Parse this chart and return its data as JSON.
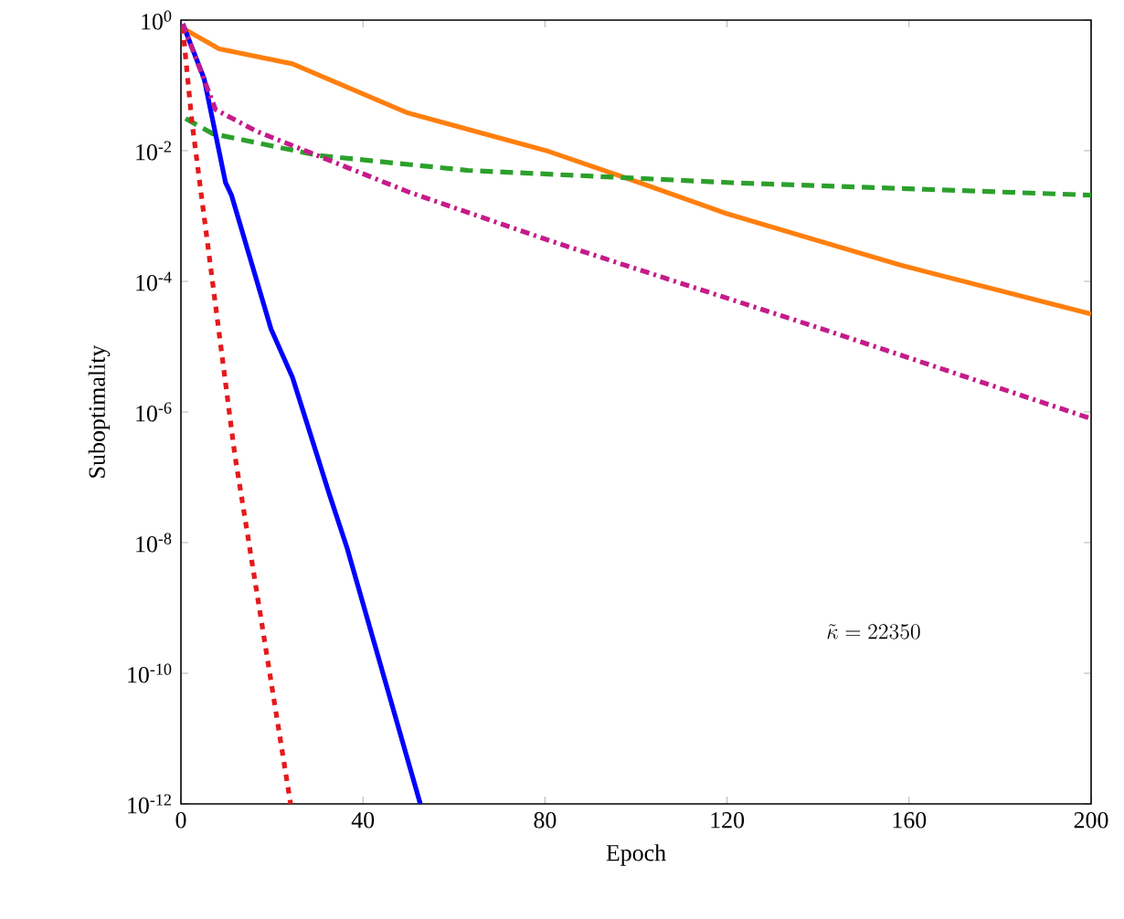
{
  "chart_data": {
    "type": "line",
    "xlabel": "Epoch",
    "ylabel": "Suboptimality",
    "log": "y",
    "grid": false,
    "marker": "none",
    "xlim": [
      0,
      200
    ],
    "xticks": [
      0,
      40,
      80,
      120,
      160,
      200
    ],
    "ylim": [
      1e-12,
      1
    ],
    "yticks": [
      {
        "value": 1,
        "label": "10$^{0}$"
      },
      {
        "value": 0.01,
        "label": "10$^{-2}$"
      },
      {
        "value": 0.0001,
        "label": "10$^{-4}$"
      },
      {
        "value": 1e-06,
        "label": "10$^{-6}$"
      },
      {
        "value": 1e-08,
        "label": "10$^{-8}$"
      },
      {
        "value": 1e-10,
        "label": "10$^{-10}$"
      },
      {
        "value": 1e-12,
        "label": "10$^{-12}$"
      }
    ],
    "annotations": [
      "\\tilde{\\kappa} = 22350"
    ],
    "series": [
      {
        "color": "#ff7f0e",
        "line_style": "solid",
        "x": [
          0,
          8.4,
          24.5,
          49.8,
          80.7,
          100.8,
          119.7,
          158,
          200
        ],
        "values": [
          0.776,
          0.363,
          0.214,
          0.038,
          0.0098,
          0.00324,
          0.0011,
          0.000178,
          3.16e-05
        ]
      },
      {
        "color": "#2ca02c",
        "line_style": "dashed",
        "x": [
          1,
          7,
          30,
          63,
          121,
          200
        ],
        "values": [
          0.031,
          0.0182,
          0.0085,
          0.005,
          0.00324,
          0.00209
        ]
      },
      {
        "color": "#0000ff",
        "line_style": "solid",
        "x": [
          0.4,
          5.1,
          9.8,
          11.1,
          19.8,
          24.5,
          29.8,
          32.5,
          36.5,
          52.6
        ],
        "values": [
          0.87,
          0.126,
          0.00324,
          0.00209,
          1.86e-05,
          3.4e-06,
          2.3e-07,
          5.8e-08,
          8.3e-09,
          1e-12
        ]
      },
      {
        "color": "#e41a1c",
        "line_style": "dotted",
        "x": [
          0.4,
          1.1,
          2.4,
          11.8,
          24.1
        ],
        "values": [
          0.776,
          0.24,
          0.028,
          2.3e-07,
          1e-12
        ]
      },
      {
        "color": "#c51b8a",
        "line_style": "dashdot",
        "x": [
          0.4,
          7.6,
          16.5,
          50,
          81,
          101,
          141,
          200
        ],
        "values": [
          0.87,
          0.0427,
          0.02,
          0.00234,
          0.00042,
          0.000148,
          1.86e-05,
          7.9e-07
        ]
      }
    ]
  }
}
